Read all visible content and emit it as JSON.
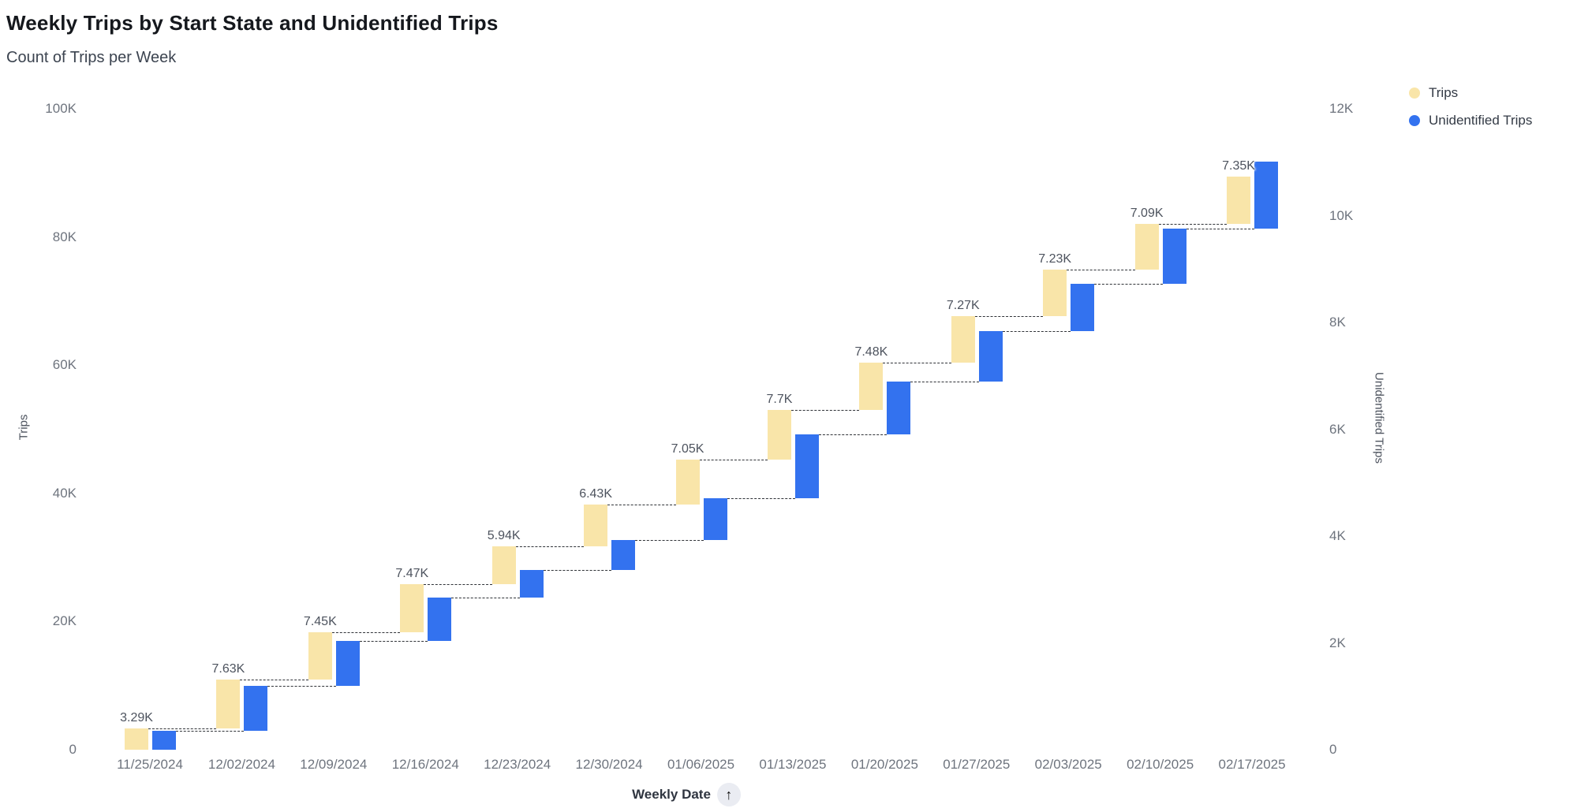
{
  "title": "Weekly Trips by Start State and Unidentified Trips",
  "subtitle": "Count of Trips per Week",
  "legend": {
    "position": "top-right",
    "items": [
      {
        "label": "Trips",
        "color": "#F9E5A9"
      },
      {
        "label": "Unidentified Trips",
        "color": "#3372EF"
      }
    ]
  },
  "axes": {
    "left": {
      "title": "Trips",
      "tick_values_k": [
        0,
        20,
        40,
        60,
        80,
        100
      ],
      "tick_labels": [
        "0",
        "20K",
        "40K",
        "60K",
        "80K",
        "100K"
      ]
    },
    "right": {
      "title": "Unidentified Trips",
      "tick_values_k": [
        0,
        2,
        4,
        6,
        8,
        10,
        12
      ],
      "tick_labels": [
        "0",
        "2K",
        "4K",
        "6K",
        "8K",
        "10K",
        "12K"
      ]
    },
    "x": {
      "title": "Weekly Date",
      "sort_icon": "arrow-up-icon",
      "sort_glyph": "↑"
    }
  },
  "chart_data": {
    "type": "bar",
    "subtype": "dual-axis-waterfall",
    "title": "Weekly Trips by Start State and Unidentified Trips",
    "subtitle": "Count of Trips per Week",
    "xlabel": "Weekly Date",
    "categories": [
      "11/25/2024",
      "12/02/2024",
      "12/09/2024",
      "12/16/2024",
      "12/23/2024",
      "12/30/2024",
      "01/06/2025",
      "01/13/2025",
      "01/20/2025",
      "01/27/2025",
      "02/03/2025",
      "02/10/2025",
      "02/17/2025"
    ],
    "series": [
      {
        "name": "Trips",
        "axis": "left",
        "color": "#F9E5A9",
        "values_k": [
          3.29,
          7.63,
          7.45,
          7.47,
          5.94,
          6.43,
          7.05,
          7.7,
          7.48,
          7.27,
          7.23,
          7.09,
          7.35
        ],
        "data_labels": [
          "3.29K",
          "7.63K",
          "7.45K",
          "7.47K",
          "5.94K",
          "6.43K",
          "7.05K",
          "7.7K",
          "7.48K",
          "7.27K",
          "7.23K",
          "7.09K",
          "7.35K"
        ],
        "cumulative": true
      },
      {
        "name": "Unidentified Trips",
        "axis": "right",
        "color": "#3372EF",
        "values_k": [
          0.36,
          0.84,
          0.84,
          0.81,
          0.52,
          0.55,
          0.79,
          1.19,
          1.0,
          0.94,
          0.88,
          1.03,
          1.26
        ],
        "values_estimated_from_pixels": true,
        "cumulative": true
      }
    ],
    "left_axis_range_k": [
      0,
      100
    ],
    "right_axis_range_k": [
      0,
      12
    ],
    "grid": false,
    "connector_style": "dashed",
    "legend_position": "top-right",
    "background": "#ffffff"
  }
}
